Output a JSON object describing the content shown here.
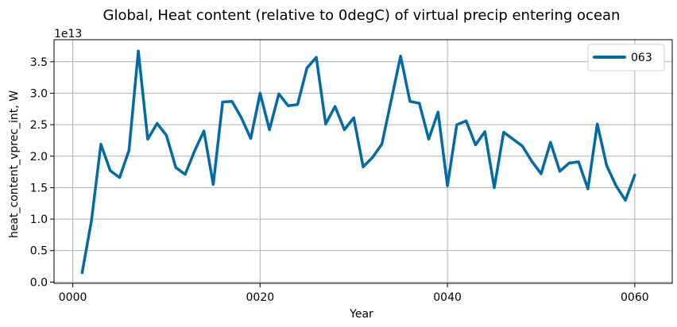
{
  "chart_data": {
    "type": "line",
    "title": "Global, Heat content (relative to 0degC) of virtual precip entering ocean",
    "xlabel": "Year",
    "ylabel": "heat_content_vprec_int, W",
    "y_offset_label": "1e13",
    "xlim": [
      -2,
      64
    ],
    "ylim": [
      -0.02,
      3.85
    ],
    "x_ticks": [
      0,
      20,
      40,
      60
    ],
    "x_tick_labels": [
      "0000",
      "0020",
      "0040",
      "0060"
    ],
    "y_ticks": [
      0.0,
      0.5,
      1.0,
      1.5,
      2.0,
      2.5,
      3.0,
      3.5
    ],
    "y_tick_labels": [
      "0.0",
      "0.5",
      "1.0",
      "1.5",
      "2.0",
      "2.5",
      "3.0",
      "3.5"
    ],
    "grid": true,
    "legend_position": "top-right",
    "series": [
      {
        "name": "063",
        "color": "#006ba4",
        "x": [
          1,
          2,
          3,
          4,
          5,
          6,
          7,
          8,
          9,
          10,
          11,
          12,
          13,
          14,
          15,
          16,
          17,
          18,
          19,
          20,
          21,
          22,
          23,
          24,
          25,
          26,
          27,
          28,
          29,
          30,
          31,
          32,
          33,
          34,
          35,
          36,
          37,
          38,
          39,
          40,
          41,
          42,
          43,
          44,
          45,
          46,
          47,
          48,
          49,
          50,
          51,
          52,
          53,
          54,
          55,
          56,
          57,
          58,
          59,
          60
        ],
        "values": [
          0.15,
          0.98,
          2.19,
          1.77,
          1.66,
          2.09,
          3.67,
          2.27,
          2.52,
          2.33,
          1.82,
          1.71,
          2.08,
          2.4,
          1.55,
          2.86,
          2.87,
          2.61,
          2.28,
          3.0,
          2.42,
          2.99,
          2.8,
          2.82,
          3.4,
          3.57,
          2.51,
          2.79,
          2.42,
          2.61,
          1.83,
          1.98,
          2.19,
          2.89,
          3.59,
          2.87,
          2.84,
          2.27,
          2.7,
          1.53,
          2.5,
          2.56,
          2.18,
          2.39,
          1.5,
          2.38,
          2.27,
          2.16,
          1.92,
          1.72,
          2.22,
          1.76,
          1.89,
          1.91,
          1.48,
          2.51,
          1.85,
          1.53,
          1.3,
          1.7
        ]
      }
    ]
  }
}
